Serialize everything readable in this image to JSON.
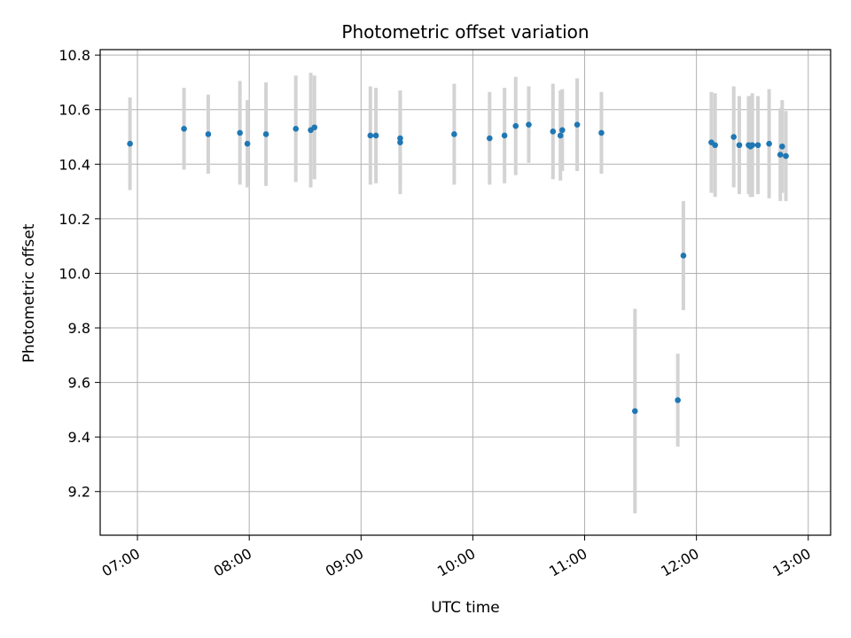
{
  "chart_data": {
    "type": "scatter",
    "title": "Photometric offset variation",
    "xlabel": "UTC time",
    "ylabel": "Photometric offset",
    "x_tick_labels": [
      "07:00",
      "08:00",
      "09:00",
      "10:00",
      "11:00",
      "12:00",
      "13:00"
    ],
    "y_tick_labels": [
      "9.2",
      "9.4",
      "9.6",
      "9.8",
      "10.0",
      "10.2",
      "10.4",
      "10.6",
      "10.8"
    ],
    "x_ticks_hours": [
      7,
      8,
      9,
      10,
      11,
      12,
      13
    ],
    "y_ticks": [
      9.2,
      9.4,
      9.6,
      9.8,
      10.0,
      10.2,
      10.4,
      10.6,
      10.8
    ],
    "xlim": [
      "06:40",
      "13:12"
    ],
    "ylim": [
      9.04,
      10.82
    ],
    "grid": true,
    "colors": {
      "point": "#1f77b4",
      "errorbar": "#d3d3d3",
      "grid": "#b0b0b0"
    },
    "points": [
      {
        "time": "06:56",
        "y": 10.475,
        "err": 0.17
      },
      {
        "time": "07:25",
        "y": 10.53,
        "err": 0.15
      },
      {
        "time": "07:38",
        "y": 10.51,
        "err": 0.145
      },
      {
        "time": "07:55",
        "y": 10.515,
        "err": 0.19
      },
      {
        "time": "07:59",
        "y": 10.475,
        "err": 0.16
      },
      {
        "time": "08:09",
        "y": 10.51,
        "err": 0.19
      },
      {
        "time": "08:25",
        "y": 10.53,
        "err": 0.195
      },
      {
        "time": "08:33",
        "y": 10.525,
        "err": 0.21
      },
      {
        "time": "08:35",
        "y": 10.535,
        "err": 0.19
      },
      {
        "time": "09:05",
        "y": 10.505,
        "err": 0.18
      },
      {
        "time": "09:08",
        "y": 10.505,
        "err": 0.175
      },
      {
        "time": "09:21",
        "y": 10.495,
        "err": 0.17
      },
      {
        "time": "09:21",
        "y": 10.48,
        "err": 0.19
      },
      {
        "time": "09:50",
        "y": 10.51,
        "err": 0.185
      },
      {
        "time": "10:09",
        "y": 10.495,
        "err": 0.17
      },
      {
        "time": "10:17",
        "y": 10.505,
        "err": 0.175
      },
      {
        "time": "10:23",
        "y": 10.54,
        "err": 0.18
      },
      {
        "time": "10:30",
        "y": 10.545,
        "err": 0.14
      },
      {
        "time": "10:43",
        "y": 10.52,
        "err": 0.175
      },
      {
        "time": "10:47",
        "y": 10.505,
        "err": 0.165
      },
      {
        "time": "10:48",
        "y": 10.525,
        "err": 0.15
      },
      {
        "time": "10:56",
        "y": 10.545,
        "err": 0.17
      },
      {
        "time": "11:09",
        "y": 10.515,
        "err": 0.15
      },
      {
        "time": "11:27",
        "y": 9.495,
        "err": 0.375
      },
      {
        "time": "11:50",
        "y": 9.535,
        "err": 0.17
      },
      {
        "time": "11:53",
        "y": 10.065,
        "err": 0.2
      },
      {
        "time": "12:08",
        "y": 10.48,
        "err": 0.185
      },
      {
        "time": "12:10",
        "y": 10.47,
        "err": 0.19
      },
      {
        "time": "12:20",
        "y": 10.5,
        "err": 0.185
      },
      {
        "time": "12:23",
        "y": 10.47,
        "err": 0.18
      },
      {
        "time": "12:28",
        "y": 10.47,
        "err": 0.18
      },
      {
        "time": "12:29",
        "y": 10.465,
        "err": 0.185
      },
      {
        "time": "12:30",
        "y": 10.47,
        "err": 0.19
      },
      {
        "time": "12:33",
        "y": 10.47,
        "err": 0.18
      },
      {
        "time": "12:39",
        "y": 10.475,
        "err": 0.2
      },
      {
        "time": "12:45",
        "y": 10.435,
        "err": 0.17
      },
      {
        "time": "12:46",
        "y": 10.465,
        "err": 0.17
      },
      {
        "time": "12:48",
        "y": 10.43,
        "err": 0.165
      }
    ]
  }
}
